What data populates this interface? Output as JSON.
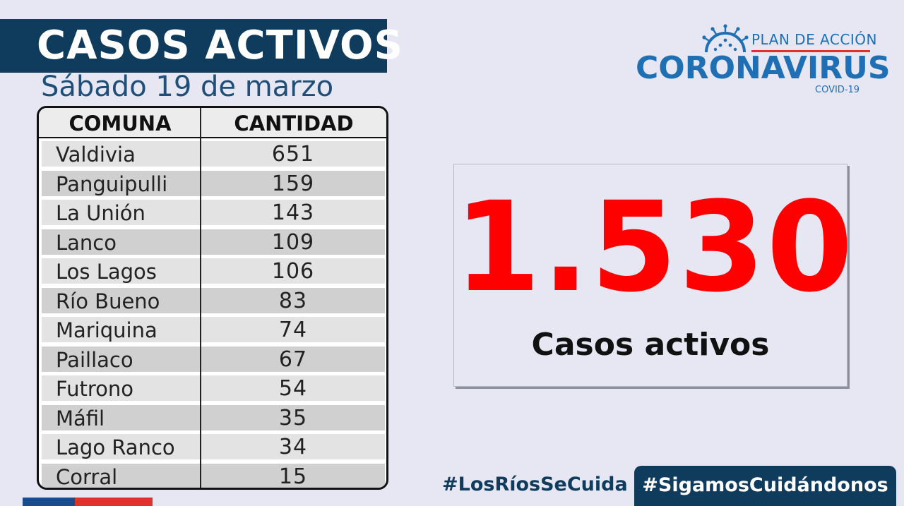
{
  "header": {
    "title": "CASOS ACTIVOS",
    "date": "Sábado 19 de marzo"
  },
  "table": {
    "columns": [
      "COMUNA",
      "CANTIDAD"
    ],
    "rows": [
      {
        "comuna": "Valdivia",
        "cantidad": "651"
      },
      {
        "comuna": "Panguipulli",
        "cantidad": "159"
      },
      {
        "comuna": "La Unión",
        "cantidad": "143"
      },
      {
        "comuna": "Lanco",
        "cantidad": "109"
      },
      {
        "comuna": "Los Lagos",
        "cantidad": "106"
      },
      {
        "comuna": "Río Bueno",
        "cantidad": "83"
      },
      {
        "comuna": "Mariquina",
        "cantidad": "74"
      },
      {
        "comuna": "Paillaco",
        "cantidad": "67"
      },
      {
        "comuna": "Futrono",
        "cantidad": "54"
      },
      {
        "comuna": "Máfil",
        "cantidad": "35"
      },
      {
        "comuna": "Lago Ranco",
        "cantidad": "34"
      },
      {
        "comuna": "Corral",
        "cantidad": "15"
      }
    ]
  },
  "logo": {
    "plan": "PLAN DE ACCIÓN",
    "name": "CORONAVIRUS",
    "sub": "COVID-19",
    "icon": "virus-icon"
  },
  "summary": {
    "total": "1.530",
    "label": "Casos activos"
  },
  "footer": {
    "hashtag_1": "#LosRíosSeCuida",
    "hashtag_2": "#SigamosCuidándonos"
  },
  "colors": {
    "navy": "#0f3b5c",
    "accent_red": "#ff0000",
    "logo_blue": "#1f6fb5"
  }
}
